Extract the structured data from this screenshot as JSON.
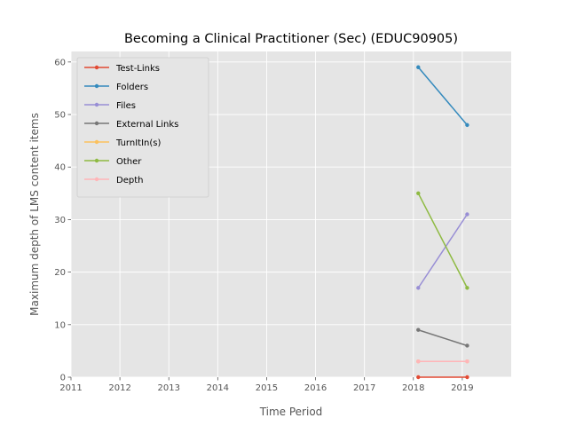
{
  "chart_data": {
    "type": "line",
    "title": "Becoming a Clinical Practitioner (Sec) (EDUC90905)",
    "xlabel": "Time Period",
    "ylabel": "Maximum depth of LMS content items",
    "xlim": [
      2011,
      2020
    ],
    "ylim": [
      0,
      62
    ],
    "xticks": [
      2011,
      2012,
      2013,
      2014,
      2015,
      2016,
      2017,
      2018,
      2019
    ],
    "yticks": [
      0,
      10,
      20,
      30,
      40,
      50,
      60
    ],
    "x": [
      2018.1,
      2019.1
    ],
    "grid": true,
    "legend_position": "top-left",
    "series": [
      {
        "name": "Test-Links",
        "color": "#E24A33",
        "values": [
          0,
          0
        ]
      },
      {
        "name": "Folders",
        "color": "#348ABD",
        "values": [
          59,
          48
        ]
      },
      {
        "name": "Files",
        "color": "#988ED5",
        "values": [
          17,
          31
        ]
      },
      {
        "name": "External Links",
        "color": "#777777",
        "values": [
          9,
          6
        ]
      },
      {
        "name": "TurnItIn(s)",
        "color": "#FBC15E",
        "values": [
          3,
          3
        ]
      },
      {
        "name": "Other",
        "color": "#8EBA42",
        "values": [
          35,
          17
        ]
      },
      {
        "name": "Depth",
        "color": "#FFB5B8",
        "values": [
          3,
          3
        ]
      }
    ]
  }
}
